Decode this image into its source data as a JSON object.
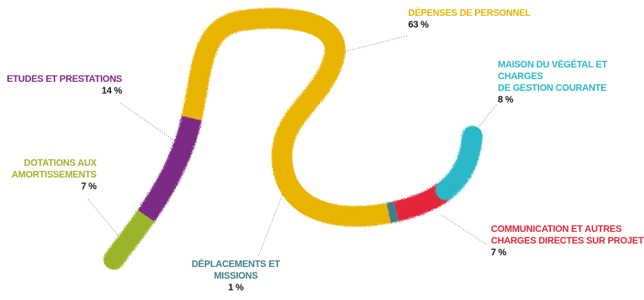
{
  "chart_data": {
    "type": "worm",
    "categories": [
      "DOTATIONS AUX\nAMORTISSEMENTS",
      "ETUDES ET PRESTATIONS",
      "DÉPENSES DE PERSONNEL",
      "DÉPLACEMENTS ET\nMISSIONS",
      "COMMUNICATION ET AUTRES\nCHARGES DIRECTES SUR PROJET",
      "MAISON DU VÉGÉTAL ET CHARGES\nDE GESTION COURANTE"
    ],
    "values": [
      7,
      14,
      63,
      1,
      7,
      8
    ],
    "value_labels": [
      "7 %",
      "14 %",
      "63 %",
      "1 %",
      "7 %",
      "8 %"
    ],
    "colors": [
      "#9bb52a",
      "#7b2a85",
      "#e8b400",
      "#3f7f8a",
      "#e3263a",
      "#2bb8c9"
    ]
  }
}
